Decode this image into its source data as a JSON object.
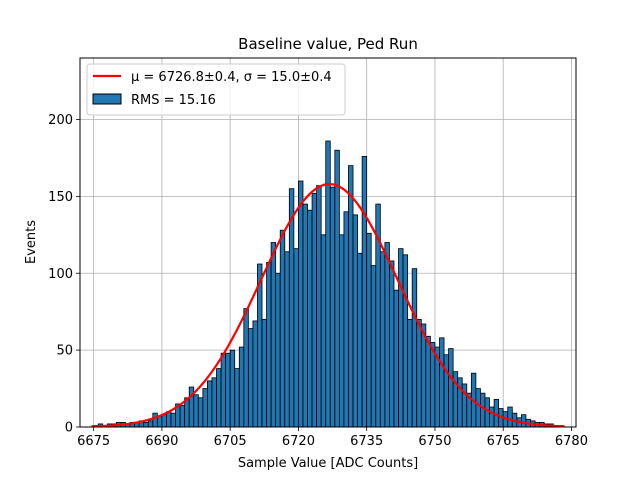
{
  "chart_data": {
    "type": "bar",
    "title": "Baseline value, Ped Run",
    "xlabel": "Sample Value [ADC Counts]",
    "ylabel": "Events",
    "xlim": [
      6672,
      6781
    ],
    "ylim": [
      0,
      240
    ],
    "xticks": [
      6675,
      6690,
      6705,
      6720,
      6735,
      6750,
      6765,
      6780
    ],
    "yticks": [
      0,
      50,
      100,
      150,
      200
    ],
    "grid": true,
    "legend_position": "top-left",
    "bar_color": "#1f77b4",
    "fit_color": "#ff0000",
    "bin_width": 1,
    "bins": [
      [
        6674,
        0
      ],
      [
        6675,
        1
      ],
      [
        6676,
        2
      ],
      [
        6677,
        1
      ],
      [
        6678,
        2
      ],
      [
        6679,
        2
      ],
      [
        6680,
        3
      ],
      [
        6681,
        3
      ],
      [
        6682,
        2
      ],
      [
        6683,
        3
      ],
      [
        6684,
        3
      ],
      [
        6685,
        4
      ],
      [
        6686,
        3
      ],
      [
        6687,
        4
      ],
      [
        6688,
        9
      ],
      [
        6689,
        7
      ],
      [
        6690,
        8
      ],
      [
        6691,
        10
      ],
      [
        6692,
        9
      ],
      [
        6693,
        15
      ],
      [
        6694,
        14
      ],
      [
        6695,
        19
      ],
      [
        6696,
        26
      ],
      [
        6697,
        21
      ],
      [
        6698,
        19
      ],
      [
        6699,
        25
      ],
      [
        6700,
        30
      ],
      [
        6701,
        32
      ],
      [
        6702,
        38
      ],
      [
        6703,
        48
      ],
      [
        6704,
        48
      ],
      [
        6705,
        50
      ],
      [
        6706,
        38
      ],
      [
        6707,
        52
      ],
      [
        6708,
        77
      ],
      [
        6709,
        64
      ],
      [
        6710,
        69
      ],
      [
        6711,
        106
      ],
      [
        6712,
        70
      ],
      [
        6713,
        107
      ],
      [
        6714,
        120
      ],
      [
        6715,
        100
      ],
      [
        6716,
        128
      ],
      [
        6717,
        114
      ],
      [
        6718,
        155
      ],
      [
        6719,
        116
      ],
      [
        6720,
        160
      ],
      [
        6721,
        145
      ],
      [
        6722,
        141
      ],
      [
        6723,
        152
      ],
      [
        6724,
        157
      ],
      [
        6725,
        125
      ],
      [
        6726,
        186
      ],
      [
        6727,
        156
      ],
      [
        6728,
        180
      ],
      [
        6729,
        125
      ],
      [
        6730,
        140
      ],
      [
        6731,
        170
      ],
      [
        6732,
        138
      ],
      [
        6733,
        113
      ],
      [
        6734,
        176
      ],
      [
        6735,
        126
      ],
      [
        6736,
        105
      ],
      [
        6737,
        145
      ],
      [
        6738,
        114
      ],
      [
        6739,
        120
      ],
      [
        6740,
        108
      ],
      [
        6741,
        89
      ],
      [
        6742,
        116
      ],
      [
        6743,
        112
      ],
      [
        6744,
        70
      ],
      [
        6745,
        103
      ],
      [
        6746,
        70
      ],
      [
        6747,
        67
      ],
      [
        6748,
        59
      ],
      [
        6749,
        55
      ],
      [
        6750,
        52
      ],
      [
        6751,
        58
      ],
      [
        6752,
        47
      ],
      [
        6753,
        51
      ],
      [
        6754,
        36
      ],
      [
        6755,
        32
      ],
      [
        6756,
        28
      ],
      [
        6757,
        22
      ],
      [
        6758,
        35
      ],
      [
        6759,
        25
      ],
      [
        6760,
        22
      ],
      [
        6761,
        19
      ],
      [
        6762,
        13
      ],
      [
        6763,
        18
      ],
      [
        6764,
        12
      ],
      [
        6765,
        10
      ],
      [
        6766,
        13
      ],
      [
        6767,
        9
      ],
      [
        6768,
        6
      ],
      [
        6769,
        8
      ],
      [
        6770,
        5
      ],
      [
        6771,
        4
      ],
      [
        6772,
        3
      ],
      [
        6773,
        3
      ],
      [
        6774,
        2
      ],
      [
        6775,
        2
      ],
      [
        6776,
        1
      ],
      [
        6777,
        1
      ],
      [
        6778,
        0
      ]
    ],
    "fit": {
      "mu": 6726.8,
      "sigma": 15.0,
      "amplitude": 158,
      "x_range": [
        6674.5,
        6778.5
      ]
    },
    "legend": {
      "fit_label_mu": "μ = 6726.8±0.4, σ = 15.0±0.4",
      "hist_label": "RMS = 15.16"
    }
  }
}
